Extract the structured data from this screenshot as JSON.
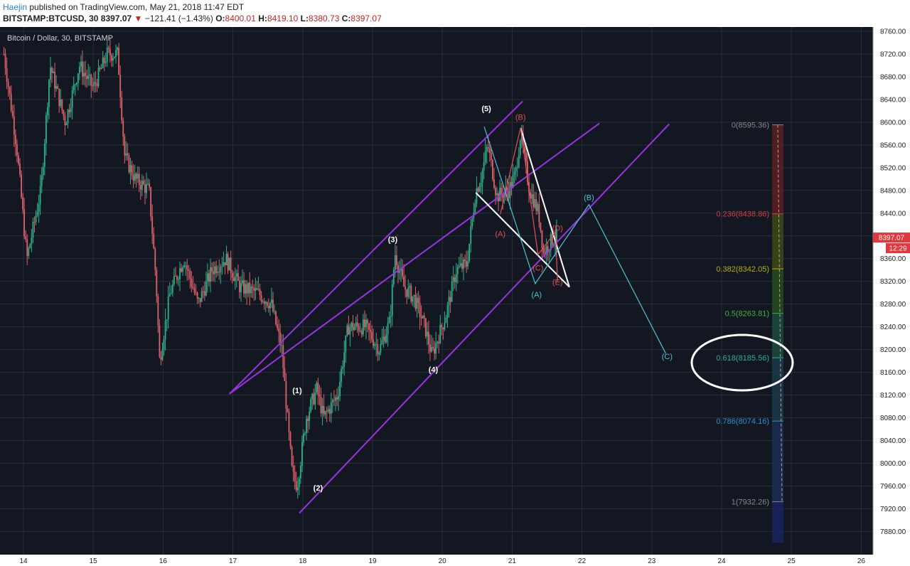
{
  "header": {
    "author": "Haejin",
    "published": "published on TradingView.com, May 21, 2018 11:47 EDT",
    "symbol": "BITSTAMP:BTCUSD, 30",
    "last": "8397.07",
    "arrow": "▼",
    "change": "−121.41 (−1.43%)",
    "o_label": "O:",
    "o_value": "8400.01",
    "h_label": "H:",
    "h_value": "8419.10",
    "l_label": "L:",
    "l_value": "8380.73",
    "c_label": "C:",
    "c_value": "8397.07"
  },
  "chart_title": "Bitcoin / Dollar, 30, BITSTAMP",
  "price_badge": "8397.07",
  "time_badge": "12:29",
  "colors": {
    "up": "#2fb08a",
    "down": "#e0606a",
    "bg": "#131722",
    "channel": "#9a33e0",
    "cyan": "#4fc3d0",
    "red_wave": "#e05050",
    "white": "#ffffff"
  },
  "chart_data": {
    "type": "candlestick",
    "title": "Bitcoin / Dollar, 30, BITSTAMP",
    "x_ticks": [
      "14",
      "15",
      "16",
      "17",
      "18",
      "19",
      "20",
      "21",
      "22",
      "23",
      "24",
      "25",
      "26"
    ],
    "y_ticks": [
      7880,
      7920,
      7960,
      8000,
      8040,
      8080,
      8120,
      8160,
      8200,
      8240,
      8280,
      8320,
      8360,
      8400,
      8440,
      8480,
      8520,
      8560,
      8600,
      8640,
      8680,
      8720,
      8760
    ],
    "ylim": [
      7860,
      8770
    ],
    "xlim": [
      13.7,
      26.5
    ],
    "last_price": 8397.07,
    "approx_path": [
      [
        13.72,
        8720
      ],
      [
        13.9,
        8560
      ],
      [
        14.05,
        8360
      ],
      [
        14.25,
        8480
      ],
      [
        14.38,
        8700
      ],
      [
        14.6,
        8600
      ],
      [
        14.8,
        8700
      ],
      [
        15.0,
        8660
      ],
      [
        15.2,
        8720
      ],
      [
        15.35,
        8720
      ],
      [
        15.45,
        8540
      ],
      [
        15.6,
        8500
      ],
      [
        15.8,
        8480
      ],
      [
        15.9,
        8320
      ],
      [
        15.95,
        8180
      ],
      [
        16.1,
        8300
      ],
      [
        16.3,
        8360
      ],
      [
        16.5,
        8280
      ],
      [
        16.7,
        8340
      ],
      [
        16.9,
        8360
      ],
      [
        17.1,
        8310
      ],
      [
        17.35,
        8300
      ],
      [
        17.55,
        8280
      ],
      [
        17.7,
        8200
      ],
      [
        17.78,
        8080
      ],
      [
        17.85,
        7980
      ],
      [
        17.92,
        7960
      ],
      [
        18.05,
        8080
      ],
      [
        18.2,
        8130
      ],
      [
        18.3,
        8080
      ],
      [
        18.5,
        8120
      ],
      [
        18.65,
        8240
      ],
      [
        18.9,
        8240
      ],
      [
        19.1,
        8200
      ],
      [
        19.25,
        8250
      ],
      [
        19.32,
        8370
      ],
      [
        19.45,
        8310
      ],
      [
        19.6,
        8290
      ],
      [
        19.75,
        8240
      ],
      [
        19.85,
        8190
      ],
      [
        20.05,
        8260
      ],
      [
        20.2,
        8340
      ],
      [
        20.35,
        8350
      ],
      [
        20.48,
        8480
      ],
      [
        20.55,
        8500
      ],
      [
        20.65,
        8560
      ],
      [
        20.78,
        8470
      ],
      [
        20.95,
        8480
      ],
      [
        21.05,
        8510
      ],
      [
        21.12,
        8580
      ],
      [
        21.25,
        8480
      ],
      [
        21.38,
        8440
      ],
      [
        21.45,
        8370
      ],
      [
        21.55,
        8390
      ],
      [
        21.65,
        8400
      ]
    ],
    "channel_lines": [
      {
        "name": "upper",
        "points": [
          [
            16.95,
            8122
          ],
          [
            21.15,
            8637
          ]
        ]
      },
      {
        "name": "middle",
        "points": [
          [
            16.95,
            8122
          ],
          [
            22.25,
            8598
          ]
        ]
      },
      {
        "name": "lower",
        "points": [
          [
            17.95,
            7912
          ],
          [
            23.25,
            8597
          ]
        ]
      }
    ],
    "wave_labels": [
      {
        "text": "(1)",
        "x": 17.92,
        "y": 8123,
        "color": "white"
      },
      {
        "text": "(2)",
        "x": 18.22,
        "y": 7952,
        "color": "white"
      },
      {
        "text": "(3)",
        "x": 19.29,
        "y": 8389,
        "color": "white"
      },
      {
        "text": "(4)",
        "x": 19.87,
        "y": 8160,
        "color": "white"
      },
      {
        "text": "(5)",
        "x": 20.63,
        "y": 8619,
        "color": "white"
      },
      {
        "text": "(A)",
        "x": 20.83,
        "y": 8399,
        "color": "red"
      },
      {
        "text": "(B)",
        "x": 21.12,
        "y": 8604,
        "color": "red"
      },
      {
        "text": "(C)",
        "x": 21.37,
        "y": 8339,
        "color": "red"
      },
      {
        "text": "(D)",
        "x": 21.65,
        "y": 8409,
        "color": "red"
      },
      {
        "text": "(E)",
        "x": 21.65,
        "y": 8314,
        "color": "red"
      },
      {
        "text": "(A)",
        "x": 21.35,
        "y": 8292,
        "color": "cyan"
      },
      {
        "text": "(B)",
        "x": 22.1,
        "y": 8463,
        "color": "cyan"
      },
      {
        "text": "(C)",
        "x": 23.22,
        "y": 8183,
        "color": "cyan"
      }
    ],
    "fibonacci": [
      {
        "label": "0(8595.36)",
        "level": 0,
        "price": 8595.36,
        "color": "#888888"
      },
      {
        "label": "0.236(8438.86)",
        "level": 0.236,
        "price": 8438.86,
        "color": "#d04040"
      },
      {
        "label": "0.382(8342.05)",
        "level": 0.382,
        "price": 8342.05,
        "color": "#b0b000"
      },
      {
        "label": "0.5(8263.81)",
        "level": 0.5,
        "price": 8263.81,
        "color": "#40b040"
      },
      {
        "label": "0.618(8185.56)",
        "level": 0.618,
        "price": 8185.56,
        "color": "#30b090"
      },
      {
        "label": "0.786(8074.16)",
        "level": 0.786,
        "price": 8074.16,
        "color": "#3090d0"
      },
      {
        "label": "1(7932.26)",
        "level": 1,
        "price": 7932.26,
        "color": "#888888"
      }
    ]
  }
}
